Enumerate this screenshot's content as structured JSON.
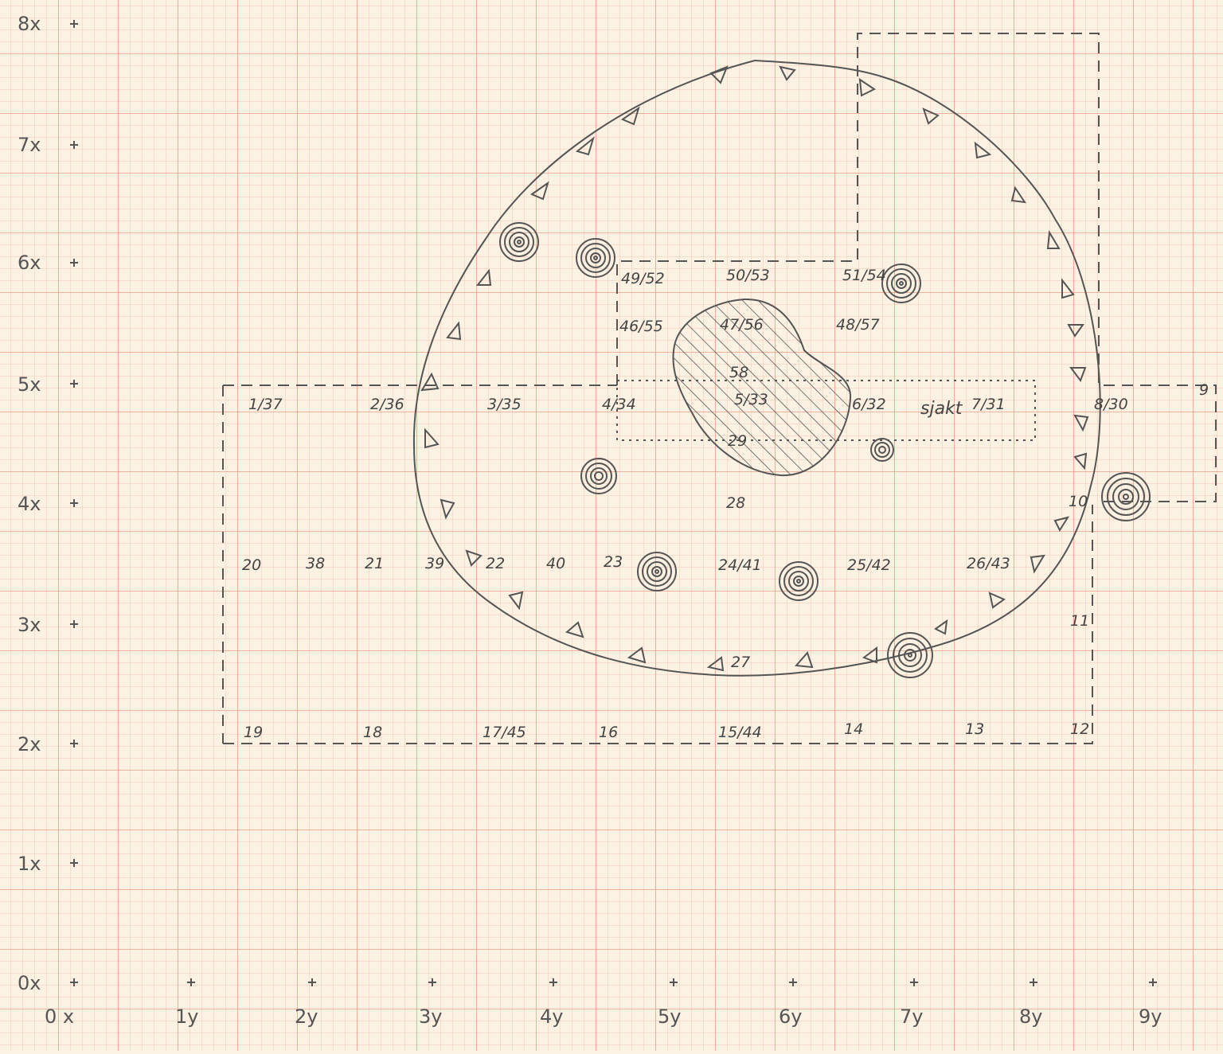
{
  "colors": {
    "paper": "#fbf2e4",
    "grid_fine": "#f4c7b3",
    "grid_major": "#ec9c84",
    "pencil": "#555555"
  },
  "x_axis_labels": [
    "0x",
    "1x",
    "2x",
    "3x",
    "4x",
    "5x",
    "6x",
    "7x",
    "8x"
  ],
  "y_axis_labels": [
    "0 x",
    "1y",
    "2y",
    "3y",
    "4y",
    "5y",
    "6y",
    "7y",
    "8y",
    "9y"
  ],
  "points": [
    "1/37",
    "2/36",
    "3/35",
    "4/34",
    "5/33",
    "6/32",
    "7/31",
    "8/30",
    "9",
    "10",
    "11",
    "12",
    "13",
    "14",
    "15/44",
    "16",
    "17/45",
    "18",
    "19",
    "20",
    "38",
    "21",
    "39",
    "22",
    "40",
    "23",
    "24/41",
    "25/42",
    "26/43",
    "27",
    "28",
    "29",
    "58",
    "46/55",
    "47/56",
    "48/57",
    "49/52",
    "50/53",
    "51/54"
  ],
  "shaft_label": "sjakt",
  "icons": [
    "triangle-marker-icon",
    "spiral-tree-icon",
    "hatched-pit-icon"
  ]
}
